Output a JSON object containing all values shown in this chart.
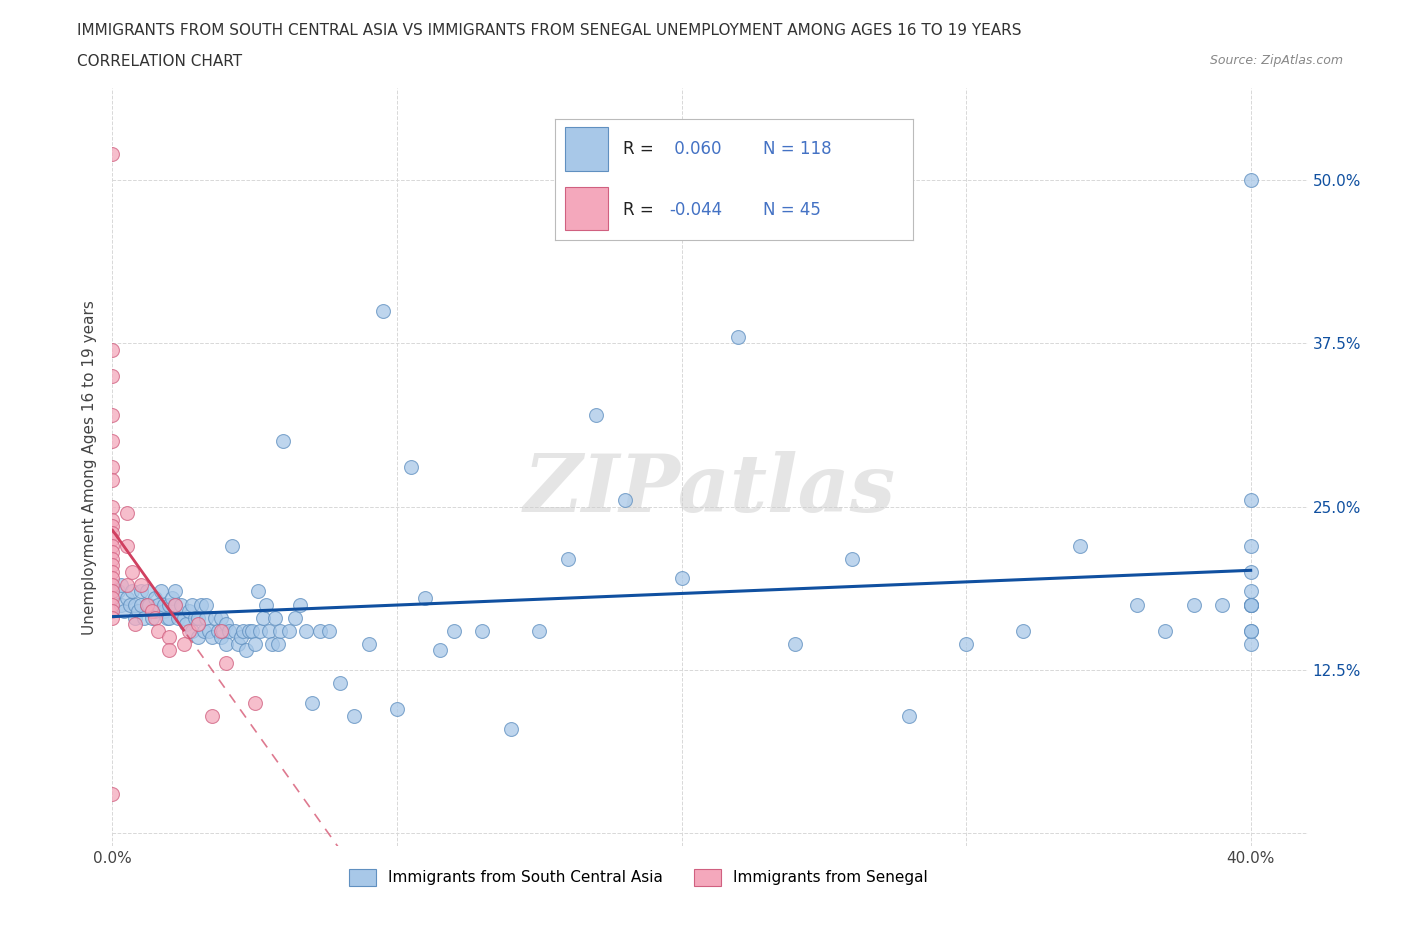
{
  "title_line1": "IMMIGRANTS FROM SOUTH CENTRAL ASIA VS IMMIGRANTS FROM SENEGAL UNEMPLOYMENT AMONG AGES 16 TO 19 YEARS",
  "title_line2": "CORRELATION CHART",
  "source_text": "Source: ZipAtlas.com",
  "ylabel": "Unemployment Among Ages 16 to 19 years",
  "xlim": [
    0.0,
    0.42
  ],
  "ylim": [
    -0.01,
    0.57
  ],
  "xticks": [
    0.0,
    0.1,
    0.2,
    0.3,
    0.4
  ],
  "xticklabels": [
    "0.0%",
    "",
    "",
    "",
    "40.0%"
  ],
  "yticks": [
    0.0,
    0.125,
    0.25,
    0.375,
    0.5
  ],
  "yticklabels": [
    "",
    "12.5%",
    "25.0%",
    "37.5%",
    "50.0%"
  ],
  "watermark": "ZIPatlas",
  "series1_label": "Immigrants from South Central Asia",
  "series2_label": "Immigrants from Senegal",
  "series1_color": "#a8c8e8",
  "series2_color": "#f4a8bc",
  "series1_edge": "#6090c0",
  "series2_edge": "#d06080",
  "series1_line_color": "#1050a0",
  "series2_line_color": "#d04060",
  "series1_R": 0.06,
  "series1_N": 118,
  "series2_R": -0.044,
  "series2_N": 45,
  "legend_R_color": "#4472c4",
  "series1_x": [
    0.002,
    0.003,
    0.003,
    0.004,
    0.005,
    0.006,
    0.007,
    0.008,
    0.008,
    0.009,
    0.01,
    0.01,
    0.011,
    0.012,
    0.012,
    0.013,
    0.014,
    0.015,
    0.015,
    0.016,
    0.017,
    0.018,
    0.018,
    0.019,
    0.02,
    0.02,
    0.021,
    0.022,
    0.022,
    0.023,
    0.024,
    0.025,
    0.026,
    0.027,
    0.028,
    0.028,
    0.029,
    0.03,
    0.03,
    0.031,
    0.032,
    0.033,
    0.033,
    0.034,
    0.035,
    0.036,
    0.037,
    0.038,
    0.038,
    0.039,
    0.04,
    0.04,
    0.041,
    0.042,
    0.043,
    0.044,
    0.045,
    0.046,
    0.047,
    0.048,
    0.049,
    0.05,
    0.051,
    0.052,
    0.053,
    0.054,
    0.055,
    0.056,
    0.057,
    0.058,
    0.059,
    0.06,
    0.062,
    0.064,
    0.066,
    0.068,
    0.07,
    0.073,
    0.076,
    0.08,
    0.085,
    0.09,
    0.095,
    0.1,
    0.105,
    0.11,
    0.115,
    0.12,
    0.13,
    0.14,
    0.15,
    0.16,
    0.17,
    0.18,
    0.2,
    0.22,
    0.24,
    0.26,
    0.28,
    0.3,
    0.32,
    0.34,
    0.36,
    0.37,
    0.38,
    0.39,
    0.4,
    0.4,
    0.4,
    0.4,
    0.4,
    0.4,
    0.4,
    0.4,
    0.4,
    0.4,
    0.4,
    0.4
  ],
  "series1_y": [
    0.185,
    0.175,
    0.19,
    0.17,
    0.18,
    0.175,
    0.185,
    0.165,
    0.175,
    0.17,
    0.175,
    0.185,
    0.165,
    0.175,
    0.185,
    0.175,
    0.165,
    0.17,
    0.18,
    0.175,
    0.185,
    0.17,
    0.175,
    0.165,
    0.165,
    0.175,
    0.18,
    0.175,
    0.185,
    0.165,
    0.175,
    0.165,
    0.16,
    0.17,
    0.155,
    0.175,
    0.165,
    0.15,
    0.165,
    0.175,
    0.155,
    0.165,
    0.175,
    0.155,
    0.15,
    0.165,
    0.155,
    0.15,
    0.165,
    0.155,
    0.16,
    0.145,
    0.155,
    0.22,
    0.155,
    0.145,
    0.15,
    0.155,
    0.14,
    0.155,
    0.155,
    0.145,
    0.185,
    0.155,
    0.165,
    0.175,
    0.155,
    0.145,
    0.165,
    0.145,
    0.155,
    0.3,
    0.155,
    0.165,
    0.175,
    0.155,
    0.1,
    0.155,
    0.155,
    0.115,
    0.09,
    0.145,
    0.4,
    0.095,
    0.28,
    0.18,
    0.14,
    0.155,
    0.155,
    0.08,
    0.155,
    0.21,
    0.32,
    0.255,
    0.195,
    0.38,
    0.145,
    0.21,
    0.09,
    0.145,
    0.155,
    0.22,
    0.175,
    0.155,
    0.175,
    0.175,
    0.185,
    0.175,
    0.175,
    0.175,
    0.155,
    0.145,
    0.175,
    0.22,
    0.155,
    0.2,
    0.255,
    0.5
  ],
  "series2_x": [
    0.0,
    0.0,
    0.0,
    0.0,
    0.0,
    0.0,
    0.0,
    0.0,
    0.0,
    0.0,
    0.0,
    0.0,
    0.0,
    0.0,
    0.0,
    0.0,
    0.0,
    0.0,
    0.0,
    0.0,
    0.0,
    0.0,
    0.0,
    0.0,
    0.0,
    0.005,
    0.005,
    0.005,
    0.007,
    0.008,
    0.01,
    0.012,
    0.014,
    0.015,
    0.016,
    0.02,
    0.02,
    0.022,
    0.025,
    0.027,
    0.03,
    0.035,
    0.038,
    0.04,
    0.05
  ],
  "series2_y": [
    0.52,
    0.37,
    0.35,
    0.32,
    0.3,
    0.28,
    0.27,
    0.25,
    0.24,
    0.235,
    0.23,
    0.225,
    0.22,
    0.215,
    0.21,
    0.205,
    0.2,
    0.195,
    0.19,
    0.185,
    0.18,
    0.175,
    0.17,
    0.165,
    0.03,
    0.245,
    0.22,
    0.19,
    0.2,
    0.16,
    0.19,
    0.175,
    0.17,
    0.165,
    0.155,
    0.15,
    0.14,
    0.175,
    0.145,
    0.155,
    0.16,
    0.09,
    0.155,
    0.13,
    0.1
  ],
  "series2_trendline_x": [
    0.0,
    0.4
  ],
  "grid_color": "#d8d8d8",
  "bg_color": "#ffffff"
}
